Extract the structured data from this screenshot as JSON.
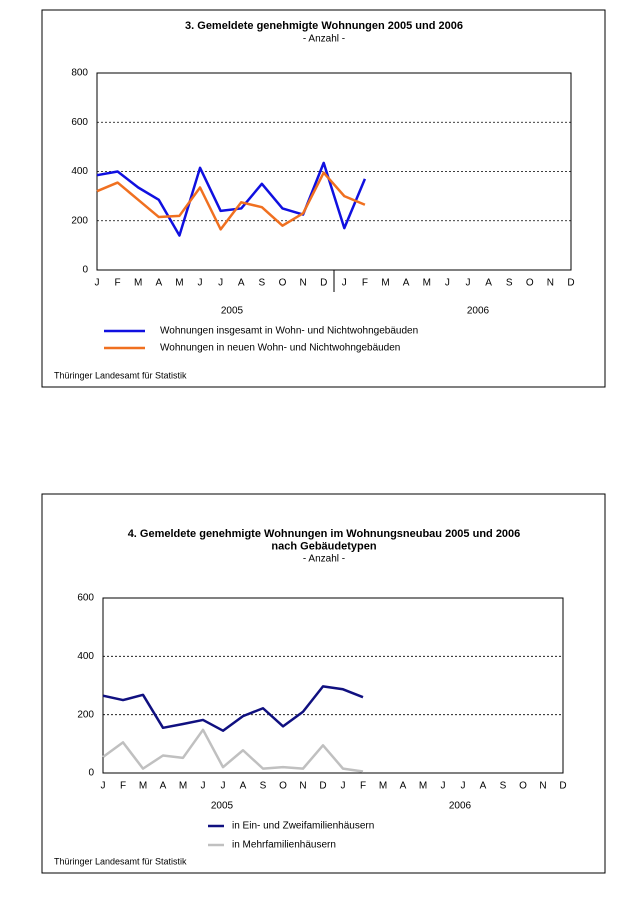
{
  "chart_data": [
    {
      "type": "line",
      "title": [
        "3. Gemeldete genehmigte Wohnungen 2005 und 2006"
      ],
      "subtitle": "- Anzahl -",
      "categories": [
        "J",
        "F",
        "M",
        "A",
        "M",
        "J",
        "J",
        "A",
        "S",
        "O",
        "N",
        "D",
        "J",
        "F",
        "M",
        "A",
        "M",
        "J",
        "J",
        "A",
        "S",
        "O",
        "N",
        "D"
      ],
      "year_labels": [
        "2005",
        "2006"
      ],
      "series": [
        {
          "name": "Wohnungen insgesamt in  Wohn- und Nichtwohngebäuden",
          "color": "#1010e0",
          "values": [
            385,
            400,
            335,
            285,
            140,
            415,
            240,
            250,
            350,
            250,
            225,
            435,
            170,
            370,
            null,
            null,
            null,
            null,
            null,
            null,
            null,
            null,
            null,
            null
          ]
        },
        {
          "name": "Wohnungen in neuen Wohn- und Nichtwohngebäuden",
          "color": "#f07020",
          "values": [
            320,
            355,
            285,
            215,
            220,
            335,
            165,
            275,
            255,
            180,
            230,
            395,
            300,
            265,
            null,
            null,
            null,
            null,
            null,
            null,
            null,
            null,
            null,
            null
          ]
        }
      ],
      "ylim": [
        0,
        800
      ],
      "yticks": [
        0,
        200,
        400,
        600,
        800
      ],
      "grid": true,
      "source": "Thüringer Landesamt für Statistik"
    },
    {
      "type": "line",
      "title": [
        "4. Gemeldete genehmigte Wohnungen im Wohnungsneubau 2005 und 2006",
        "nach Gebäudetypen"
      ],
      "subtitle": "- Anzahl -",
      "categories": [
        "J",
        "F",
        "M",
        "A",
        "M",
        "J",
        "J",
        "A",
        "S",
        "O",
        "N",
        "D",
        "J",
        "F",
        "M",
        "A",
        "M",
        "J",
        "J",
        "A",
        "S",
        "O",
        "N",
        "D"
      ],
      "year_labels": [
        "2005",
        "2006"
      ],
      "series": [
        {
          "name": "in Ein- und Zweifamilienhäusern",
          "color": "#101080",
          "values": [
            265,
            250,
            268,
            155,
            168,
            182,
            145,
            195,
            222,
            160,
            210,
            297,
            287,
            260,
            null,
            null,
            null,
            null,
            null,
            null,
            null,
            null,
            null,
            null
          ]
        },
        {
          "name": "in Mehrfamilienhäusern",
          "color": "#c0c0c0",
          "values": [
            55,
            105,
            15,
            60,
            52,
            148,
            20,
            78,
            15,
            20,
            15,
            95,
            15,
            5,
            null,
            null,
            null,
            null,
            null,
            null,
            null,
            null,
            null,
            null
          ]
        }
      ],
      "ylim": [
        0,
        600
      ],
      "yticks": [
        0,
        200,
        400,
        600
      ],
      "grid": true,
      "source": "Thüringer Landesamt für Statistik"
    }
  ]
}
